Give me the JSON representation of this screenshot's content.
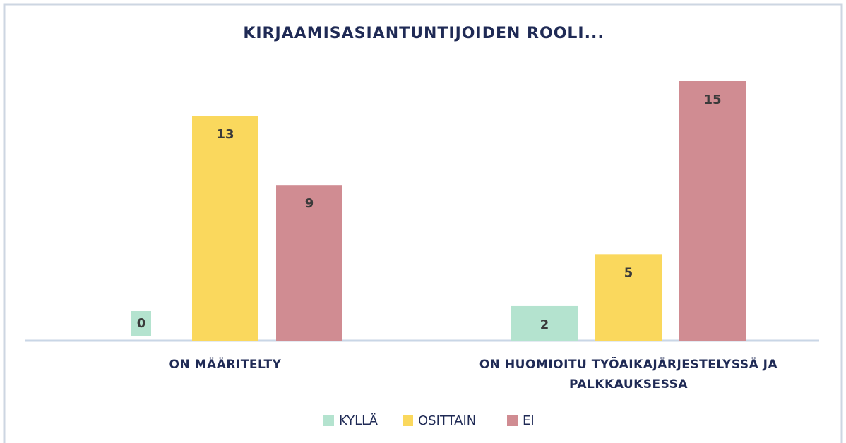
{
  "chart_data": {
    "type": "bar",
    "title": "KIRJAAMISASIANTUNTIJOIDEN ROOLI...",
    "categories": [
      "ON MÄÄRITELTY",
      "ON HUOMIOITU TYÖAIKAJÄRJESTELYSSÄ JA PALKKAUKSESSA"
    ],
    "series": [
      {
        "name": "KYLLÄ",
        "color": "#b4e3cf",
        "values": [
          0,
          2
        ]
      },
      {
        "name": "OSITTAIN",
        "color": "#fad85d",
        "values": [
          13,
          5
        ]
      },
      {
        "name": "EI",
        "color": "#d08c92",
        "values": [
          9,
          15
        ]
      }
    ],
    "legend": "bottom"
  }
}
